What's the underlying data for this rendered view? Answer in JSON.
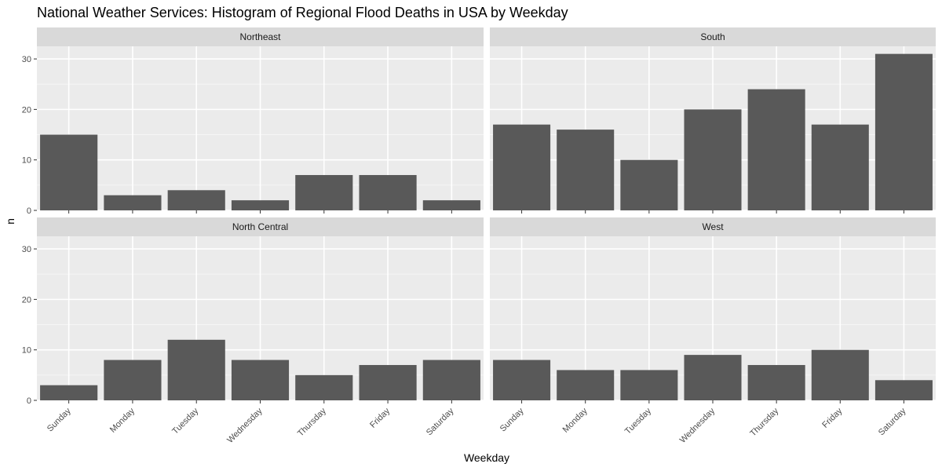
{
  "chart_data": {
    "type": "bar",
    "title": "National Weather Services: Histogram of Regional Flood Deaths in USA by Weekday",
    "xlabel": "Weekday",
    "ylabel": "n",
    "categories": [
      "Sunday",
      "Monday",
      "Tuesday",
      "Wednesday",
      "Thursday",
      "Friday",
      "Saturday"
    ],
    "ylim": [
      0,
      32.5
    ],
    "yticks": [
      0,
      10,
      20,
      30
    ],
    "grid": true,
    "legend": "none",
    "facet_layout": "2x2",
    "panels": [
      {
        "name": "Northeast",
        "values": [
          15,
          3,
          4,
          2,
          7,
          7,
          2
        ]
      },
      {
        "name": "South",
        "values": [
          17,
          16,
          10,
          20,
          24,
          17,
          31
        ]
      },
      {
        "name": "North Central",
        "values": [
          3,
          8,
          12,
          8,
          5,
          7,
          8
        ]
      },
      {
        "name": "West",
        "values": [
          8,
          6,
          6,
          9,
          7,
          10,
          4
        ]
      }
    ],
    "colors": {
      "bar": "#595959",
      "panel_background": "#ebebeb",
      "strip_background": "#d9d9d9",
      "grid_major": "#ffffff",
      "grid_minor": "#f5f5f5"
    }
  }
}
